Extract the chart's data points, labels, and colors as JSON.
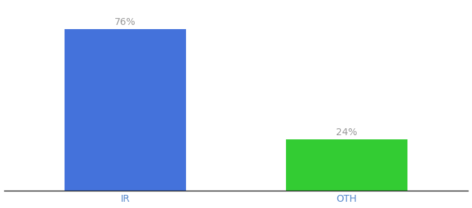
{
  "categories": [
    "IR",
    "OTH"
  ],
  "values": [
    76,
    24
  ],
  "bar_colors": [
    "#4472db",
    "#33cc33"
  ],
  "value_labels": [
    "76%",
    "24%"
  ],
  "background_color": "#ffffff",
  "ylim": [
    0,
    88
  ],
  "bar_width": 0.55,
  "label_fontsize": 10,
  "tick_fontsize": 10,
  "label_color": "#999999",
  "tick_color": "#5588cc",
  "xlim": [
    -0.55,
    1.55
  ]
}
